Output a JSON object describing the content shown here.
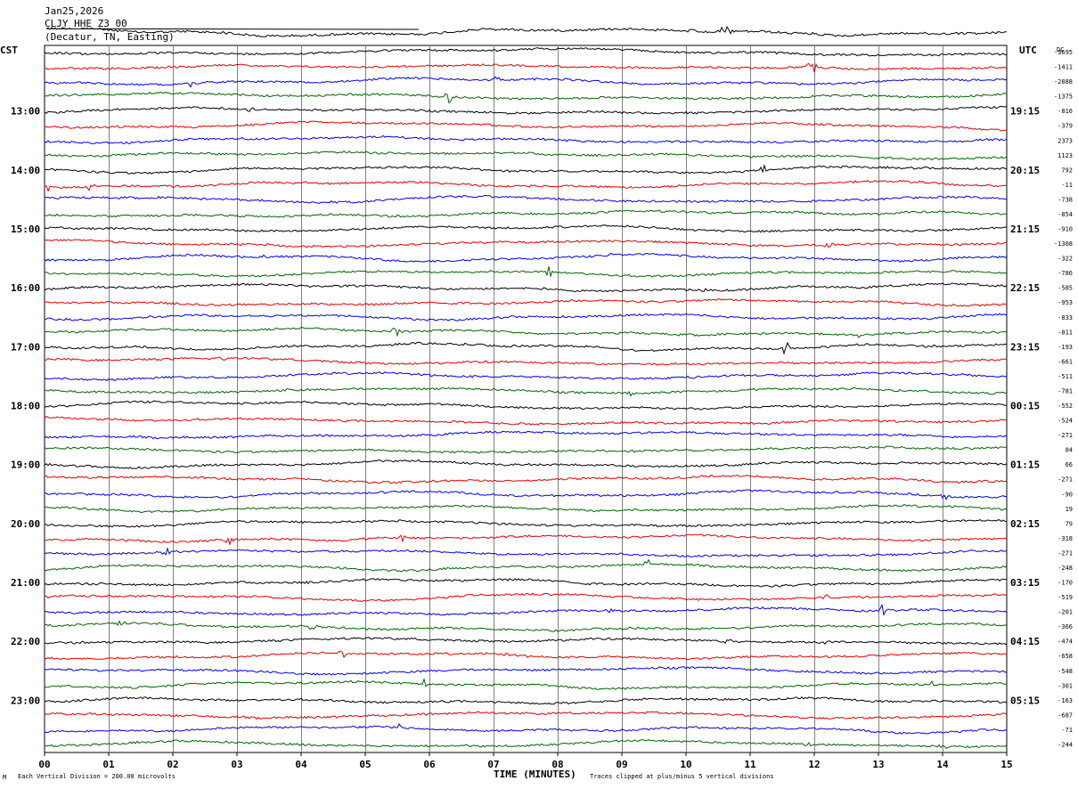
{
  "header": {
    "date": "Jan25,2026",
    "station": "CLJY HHE Z3 00",
    "location": "(Decatur, TN, Easting)"
  },
  "labels": {
    "left_zone": "CST",
    "right_zone": "UTC",
    "dc_header": "DC",
    "x_axis_title": "TIME (MINUTES)",
    "scale_note": "Each Vertical Division =  200.00 microvolts",
    "clip_note": "Traces clipped at plus/minus 5 vertical divisions",
    "corner_mark": "M"
  },
  "colors": {
    "trace_cycle": [
      "#000000",
      "#e00000",
      "#0000e0",
      "#006400"
    ],
    "grid": "#808080",
    "background": "#ffffff"
  },
  "chart_data": {
    "type": "line",
    "xlabel": "TIME (MINUTES)",
    "x_ticks": [
      "00",
      "01",
      "02",
      "03",
      "04",
      "05",
      "06",
      "07",
      "08",
      "09",
      "10",
      "11",
      "12",
      "13",
      "14",
      "15"
    ],
    "xlim": [
      0,
      15
    ],
    "row_interval_minutes": 15,
    "left_hour_labels": [
      "13:00",
      "14:00",
      "15:00",
      "16:00",
      "17:00",
      "18:00",
      "19:00",
      "20:00",
      "21:00",
      "22:00",
      "23:00"
    ],
    "right_hour_labels": [
      "19:15",
      "20:15",
      "21:15",
      "22:15",
      "23:15",
      "00:15",
      "01:15",
      "02:15",
      "03:15",
      "04:15",
      "05:15"
    ],
    "dc_offsets": [
      "-3695",
      "-1411",
      "-2888",
      "-1375",
      "-816",
      "-379",
      "2373",
      "1123",
      "792",
      "-11",
      "-738",
      "-854",
      "-910",
      "-1308",
      "-322",
      "-786",
      "-585",
      "-953",
      "-833",
      "-811",
      "-193",
      "-661",
      "-511",
      "-781",
      "-552",
      "-524",
      "-271",
      "84",
      "66",
      "-271",
      "-90",
      "19",
      "79",
      "-318",
      "-271",
      "-248",
      "-170",
      "-519",
      "-201",
      "-366",
      "-474",
      "-658",
      "-548",
      "-301",
      "-163",
      "-687",
      "-71",
      "-244"
    ],
    "grid": true
  }
}
